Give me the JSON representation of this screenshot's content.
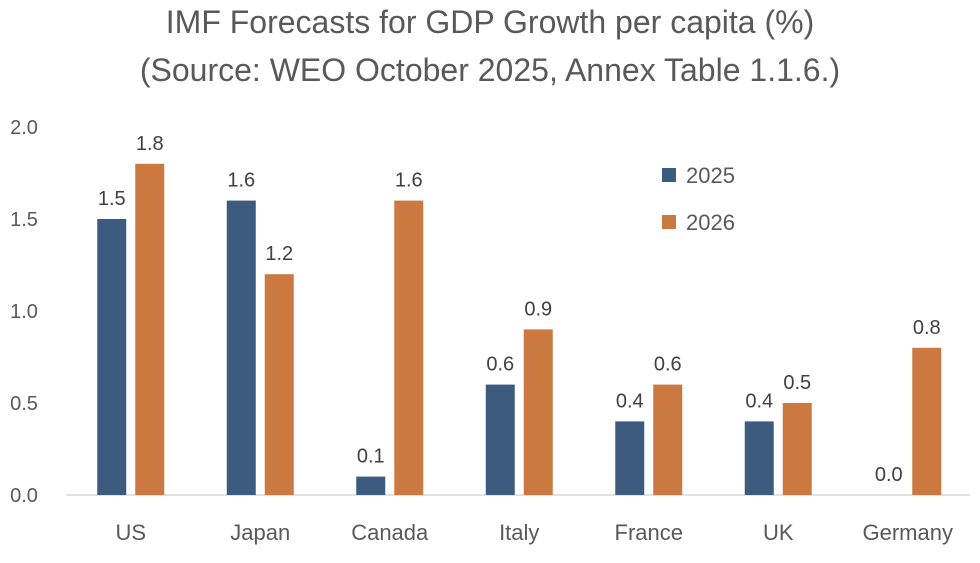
{
  "chart_data": {
    "type": "bar",
    "title_lines": [
      "IMF Forecasts for GDP Growth per capita (%)",
      "(Source: WEO October 2025, Annex Table 1.1.6.)"
    ],
    "categories": [
      "US",
      "Japan",
      "Canada",
      "Italy",
      "France",
      "UK",
      "Germany"
    ],
    "series": [
      {
        "name": "2025",
        "color": "#3D5B7E",
        "values": [
          1.5,
          1.6,
          0.1,
          0.6,
          0.4,
          0.4,
          0.0
        ]
      },
      {
        "name": "2026",
        "color": "#CB7841",
        "values": [
          1.8,
          1.2,
          1.6,
          0.9,
          0.6,
          0.5,
          0.8
        ]
      }
    ],
    "ylim": [
      0,
      2.0
    ],
    "yticks": [
      "0.0",
      "0.5",
      "1.0",
      "1.5",
      "2.0"
    ],
    "grid": false,
    "legend_placement": "top-right",
    "data_labels": true,
    "xlabel": "",
    "ylabel": ""
  }
}
